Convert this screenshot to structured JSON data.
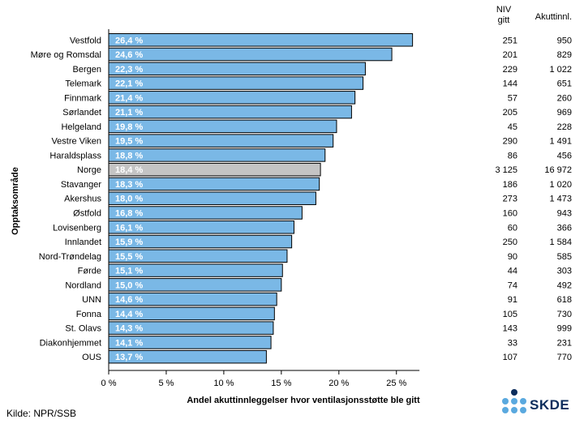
{
  "chart_data": {
    "type": "bar",
    "orientation": "horizontal",
    "categories": [
      "Vestfold",
      "Møre og Romsdal",
      "Bergen",
      "Telemark",
      "Finnmark",
      "Sørlandet",
      "Helgeland",
      "Vestre Viken",
      "Haraldsplass",
      "Norge",
      "Stavanger",
      "Akershus",
      "Østfold",
      "Lovisenberg",
      "Innlandet",
      "Nord-Trøndelag",
      "Førde",
      "Nordland",
      "UNN",
      "Fonna",
      "St. Olavs",
      "Diakonhjemmet",
      "OUS"
    ],
    "values": [
      26.4,
      24.6,
      22.3,
      22.1,
      21.4,
      21.1,
      19.8,
      19.5,
      18.8,
      18.4,
      18.3,
      18.0,
      16.8,
      16.1,
      15.9,
      15.5,
      15.1,
      15.0,
      14.6,
      14.4,
      14.3,
      14.1,
      13.7
    ],
    "value_labels": [
      "26,4 %",
      "24,6 %",
      "22,3 %",
      "22,1 %",
      "21,4 %",
      "21,1 %",
      "19,8 %",
      "19,5 %",
      "18,8 %",
      "18,4 %",
      "18,3 %",
      "18,0 %",
      "16,8 %",
      "16,1 %",
      "15,9 %",
      "15,5 %",
      "15,1 %",
      "15,0 %",
      "14,6 %",
      "14,4 %",
      "14,3 %",
      "14,1 %",
      "13,7 %"
    ],
    "highlight_category": "Norge",
    "colors": {
      "bar": "#7ab8e6",
      "highlight": "#c4c4c4",
      "outline": "#000000",
      "label": "#ffffff"
    },
    "xlabel": "Andel akuttinnleggelser hvor ventilasjonsstøtte ble gitt",
    "ylabel": "Opptaksområde",
    "xlim": [
      0,
      27
    ],
    "xticks": [
      0,
      5,
      10,
      15,
      20,
      25
    ],
    "xtick_labels": [
      "0 %",
      "5 %",
      "10 %",
      "15 %",
      "20 %",
      "25 %"
    ],
    "grid": false,
    "table": {
      "headers": [
        "NIV\ngitt",
        "Akuttinnl."
      ],
      "columns": [
        [
          "251",
          "201",
          "229",
          "144",
          "57",
          "205",
          "45",
          "290",
          "86",
          "3 125",
          "186",
          "273",
          "160",
          "60",
          "250",
          "90",
          "44",
          "74",
          "91",
          "105",
          "143",
          "33",
          "107"
        ],
        [
          "950",
          "829",
          "1 022",
          "651",
          "260",
          "969",
          "228",
          "1 491",
          "456",
          "16 972",
          "1 020",
          "1 473",
          "943",
          "366",
          "1 584",
          "585",
          "303",
          "492",
          "618",
          "730",
          "999",
          "231",
          "770"
        ]
      ]
    }
  },
  "footer": {
    "source": "Kilde: NPR/SSB"
  },
  "logo": {
    "text": "SKDE"
  }
}
